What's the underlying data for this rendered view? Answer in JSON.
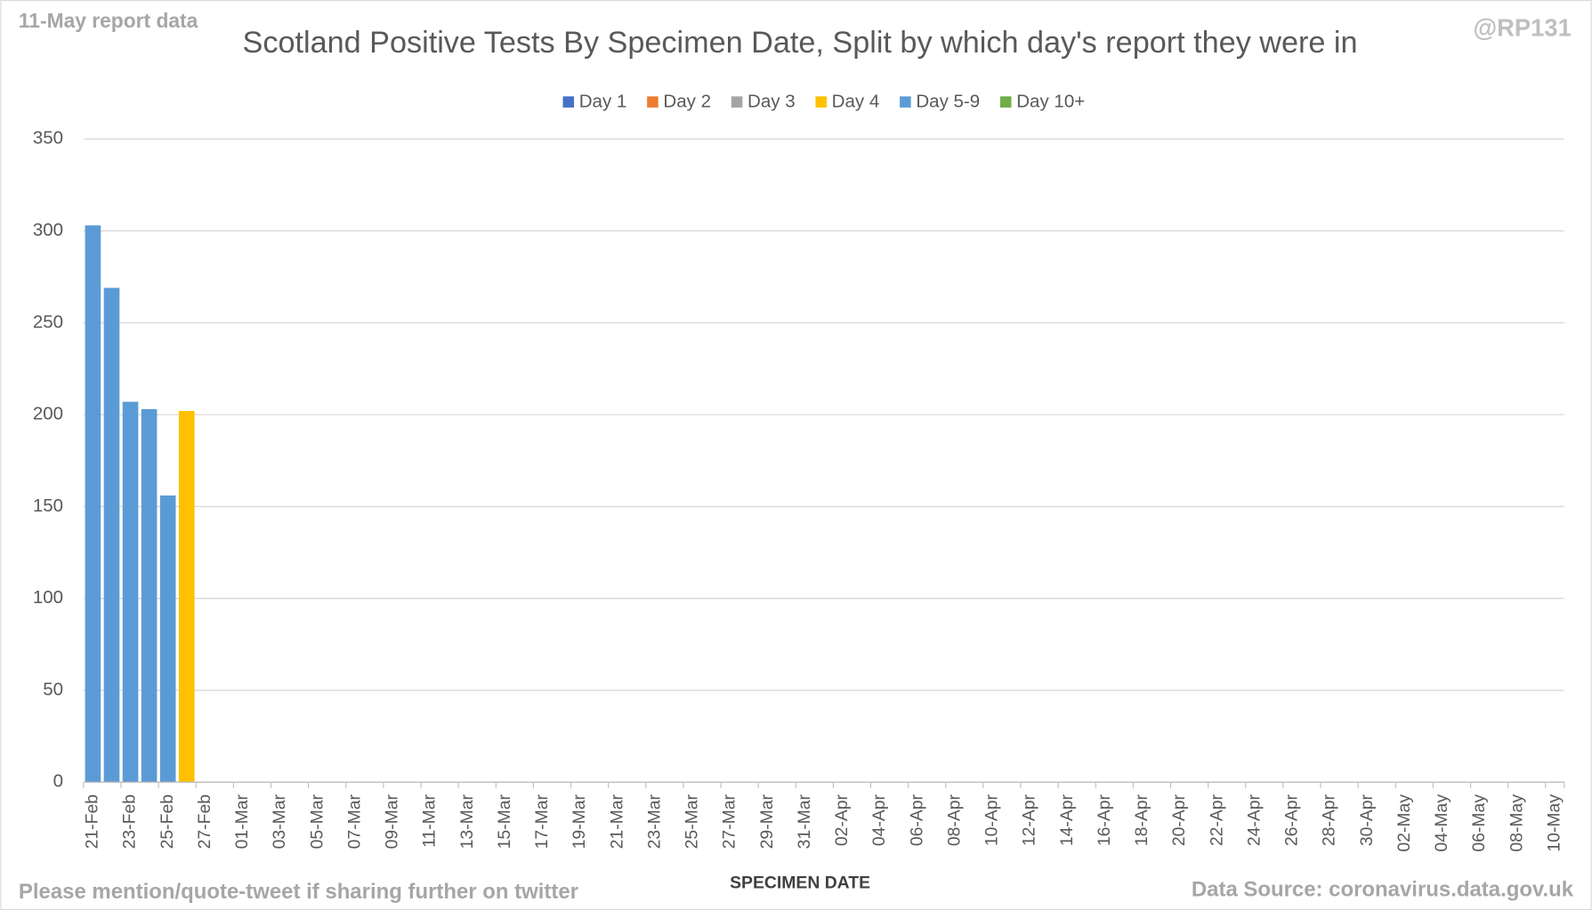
{
  "chart_data": {
    "type": "stacked_bar",
    "corner_note": "11-May report data",
    "title": "Scotland Positive Tests By Specimen Date, Split by which day's report they were in",
    "handle": "@RP131",
    "xlabel": "SPECIMEN DATE",
    "footer_left": "Please mention/quote-tweet if sharing further on twitter",
    "footer_right": "Data Source: coronavirus.data.gov.uk",
    "categories": [
      "21-Feb",
      null,
      "23-Feb",
      null,
      "25-Feb",
      null,
      "27-Feb",
      null,
      "01-Mar",
      null,
      "03-Mar",
      null,
      "05-Mar",
      null,
      "07-Mar",
      null,
      "09-Mar",
      null,
      "11-Mar",
      null,
      "13-Mar",
      null,
      "15-Mar",
      null,
      "17-Mar",
      null,
      "19-Mar",
      null,
      "21-Mar",
      null,
      "23-Mar",
      null,
      "25-Mar",
      null,
      "27-Mar",
      null,
      "29-Mar",
      null,
      "31-Mar",
      null,
      "02-Apr",
      null,
      "04-Apr",
      null,
      "06-Apr",
      null,
      "08-Apr",
      null,
      "10-Apr",
      null,
      "12-Apr",
      null,
      "14-Apr",
      null,
      "16-Apr",
      null,
      "18-Apr",
      null,
      "20-Apr",
      null,
      "22-Apr",
      null,
      "24-Apr",
      null,
      "26-Apr",
      null,
      "28-Apr",
      null,
      "30-Apr",
      null,
      "02-May",
      null,
      "04-May",
      null,
      "06-May",
      null,
      "08-May",
      null,
      "10-May"
    ],
    "series": [
      {
        "name": "Day 1",
        "color": "#4472c4",
        "values": [
          null,
          null,
          null,
          null,
          null,
          null,
          null,
          null,
          null,
          null,
          null,
          null,
          null,
          null,
          null,
          null,
          null,
          null,
          null,
          null,
          null,
          null,
          null,
          null,
          null,
          null,
          null,
          null,
          null,
          null,
          null,
          null,
          null,
          null,
          null,
          null,
          null,
          null,
          null,
          null,
          null,
          null,
          null,
          null,
          null,
          null,
          null,
          null,
          null,
          null,
          null,
          null,
          null,
          null,
          null,
          null,
          null,
          null,
          null,
          null,
          null,
          null,
          null,
          null,
          null,
          null,
          null,
          null,
          null,
          null,
          null,
          null,
          null,
          null,
          null,
          null,
          null,
          null,
          null
        ]
      },
      {
        "name": "Day 2",
        "color": "#ed7d31",
        "values": [
          null,
          null,
          null,
          null,
          null,
          null,
          null,
          null,
          null,
          null,
          null,
          null,
          null,
          null,
          null,
          null,
          null,
          null,
          null,
          null,
          null,
          null,
          null,
          null,
          null,
          null,
          null,
          null,
          null,
          null,
          null,
          null,
          null,
          null,
          null,
          null,
          null,
          null,
          null,
          null,
          null,
          null,
          null,
          null,
          null,
          null,
          null,
          null,
          null,
          null,
          null,
          null,
          null,
          null,
          null,
          null,
          null,
          null,
          null,
          null,
          null,
          null,
          null,
          null,
          null,
          null,
          null,
          null,
          null,
          null,
          null,
          null,
          null,
          null,
          null,
          null,
          null,
          null,
          null
        ]
      },
      {
        "name": "Day 3",
        "color": "#a5a5a5",
        "values": [
          null,
          null,
          null,
          null,
          null,
          null,
          null,
          null,
          null,
          null,
          null,
          null,
          null,
          null,
          null,
          null,
          null,
          null,
          null,
          null,
          null,
          null,
          null,
          null,
          null,
          null,
          null,
          null,
          null,
          null,
          null,
          null,
          null,
          null,
          null,
          null,
          null,
          null,
          null,
          null,
          null,
          null,
          null,
          null,
          null,
          null,
          null,
          null,
          null,
          null,
          null,
          null,
          null,
          null,
          null,
          null,
          null,
          null,
          null,
          null,
          null,
          null,
          null,
          null,
          null,
          null,
          null,
          null,
          null,
          null,
          null,
          null,
          null,
          null,
          null,
          null,
          null,
          null,
          null
        ]
      },
      {
        "name": "Day 4",
        "color": "#ffc000",
        "values": [
          null,
          null,
          null,
          null,
          null,
          202,
          null,
          null,
          null,
          null,
          null,
          null,
          null,
          null,
          null,
          null,
          null,
          null,
          null,
          null,
          null,
          null,
          null,
          null,
          null,
          null,
          null,
          null,
          null,
          null,
          null,
          null,
          null,
          null,
          null,
          null,
          null,
          null,
          null,
          null,
          null,
          null,
          null,
          null,
          null,
          null,
          null,
          null,
          null,
          null,
          null,
          null,
          null,
          null,
          null,
          null,
          null,
          null,
          null,
          null,
          null,
          null,
          null,
          null,
          null,
          null,
          null,
          null,
          null,
          null,
          null,
          null,
          null,
          null,
          null,
          null,
          null,
          null,
          null
        ]
      },
      {
        "name": "Day 5-9",
        "color": "#5b9bd5",
        "values": [
          303,
          269,
          207,
          203,
          156,
          null,
          null,
          null,
          null,
          null,
          null,
          null,
          null,
          null,
          null,
          null,
          null,
          null,
          null,
          null,
          null,
          null,
          null,
          null,
          null,
          null,
          null,
          null,
          null,
          null,
          null,
          null,
          null,
          null,
          null,
          null,
          null,
          null,
          null,
          null,
          null,
          null,
          null,
          null,
          null,
          null,
          null,
          null,
          null,
          null,
          null,
          null,
          null,
          null,
          null,
          null,
          null,
          null,
          null,
          null,
          null,
          null,
          null,
          null,
          null,
          null,
          null,
          null,
          null,
          null,
          null,
          null,
          null,
          null,
          null,
          null,
          null,
          null,
          null
        ]
      },
      {
        "name": "Day 10+",
        "color": "#70ad47",
        "values": [
          null,
          null,
          null,
          null,
          null,
          null,
          null,
          null,
          null,
          null,
          null,
          null,
          null,
          null,
          null,
          null,
          null,
          null,
          null,
          null,
          null,
          null,
          null,
          null,
          null,
          null,
          null,
          null,
          null,
          null,
          null,
          null,
          null,
          null,
          null,
          null,
          null,
          null,
          null,
          null,
          null,
          null,
          null,
          null,
          null,
          null,
          null,
          null,
          null,
          null,
          null,
          null,
          null,
          null,
          null,
          null,
          null,
          null,
          null,
          null,
          null,
          null,
          null,
          null,
          null,
          null,
          null,
          null,
          null,
          null,
          null,
          null,
          null,
          null,
          null,
          null,
          null,
          null,
          null
        ]
      }
    ],
    "ylim": [
      0,
      350
    ],
    "yticks": [
      0,
      50,
      100,
      150,
      200,
      250,
      300,
      350
    ],
    "grid": true,
    "legend": "top"
  }
}
